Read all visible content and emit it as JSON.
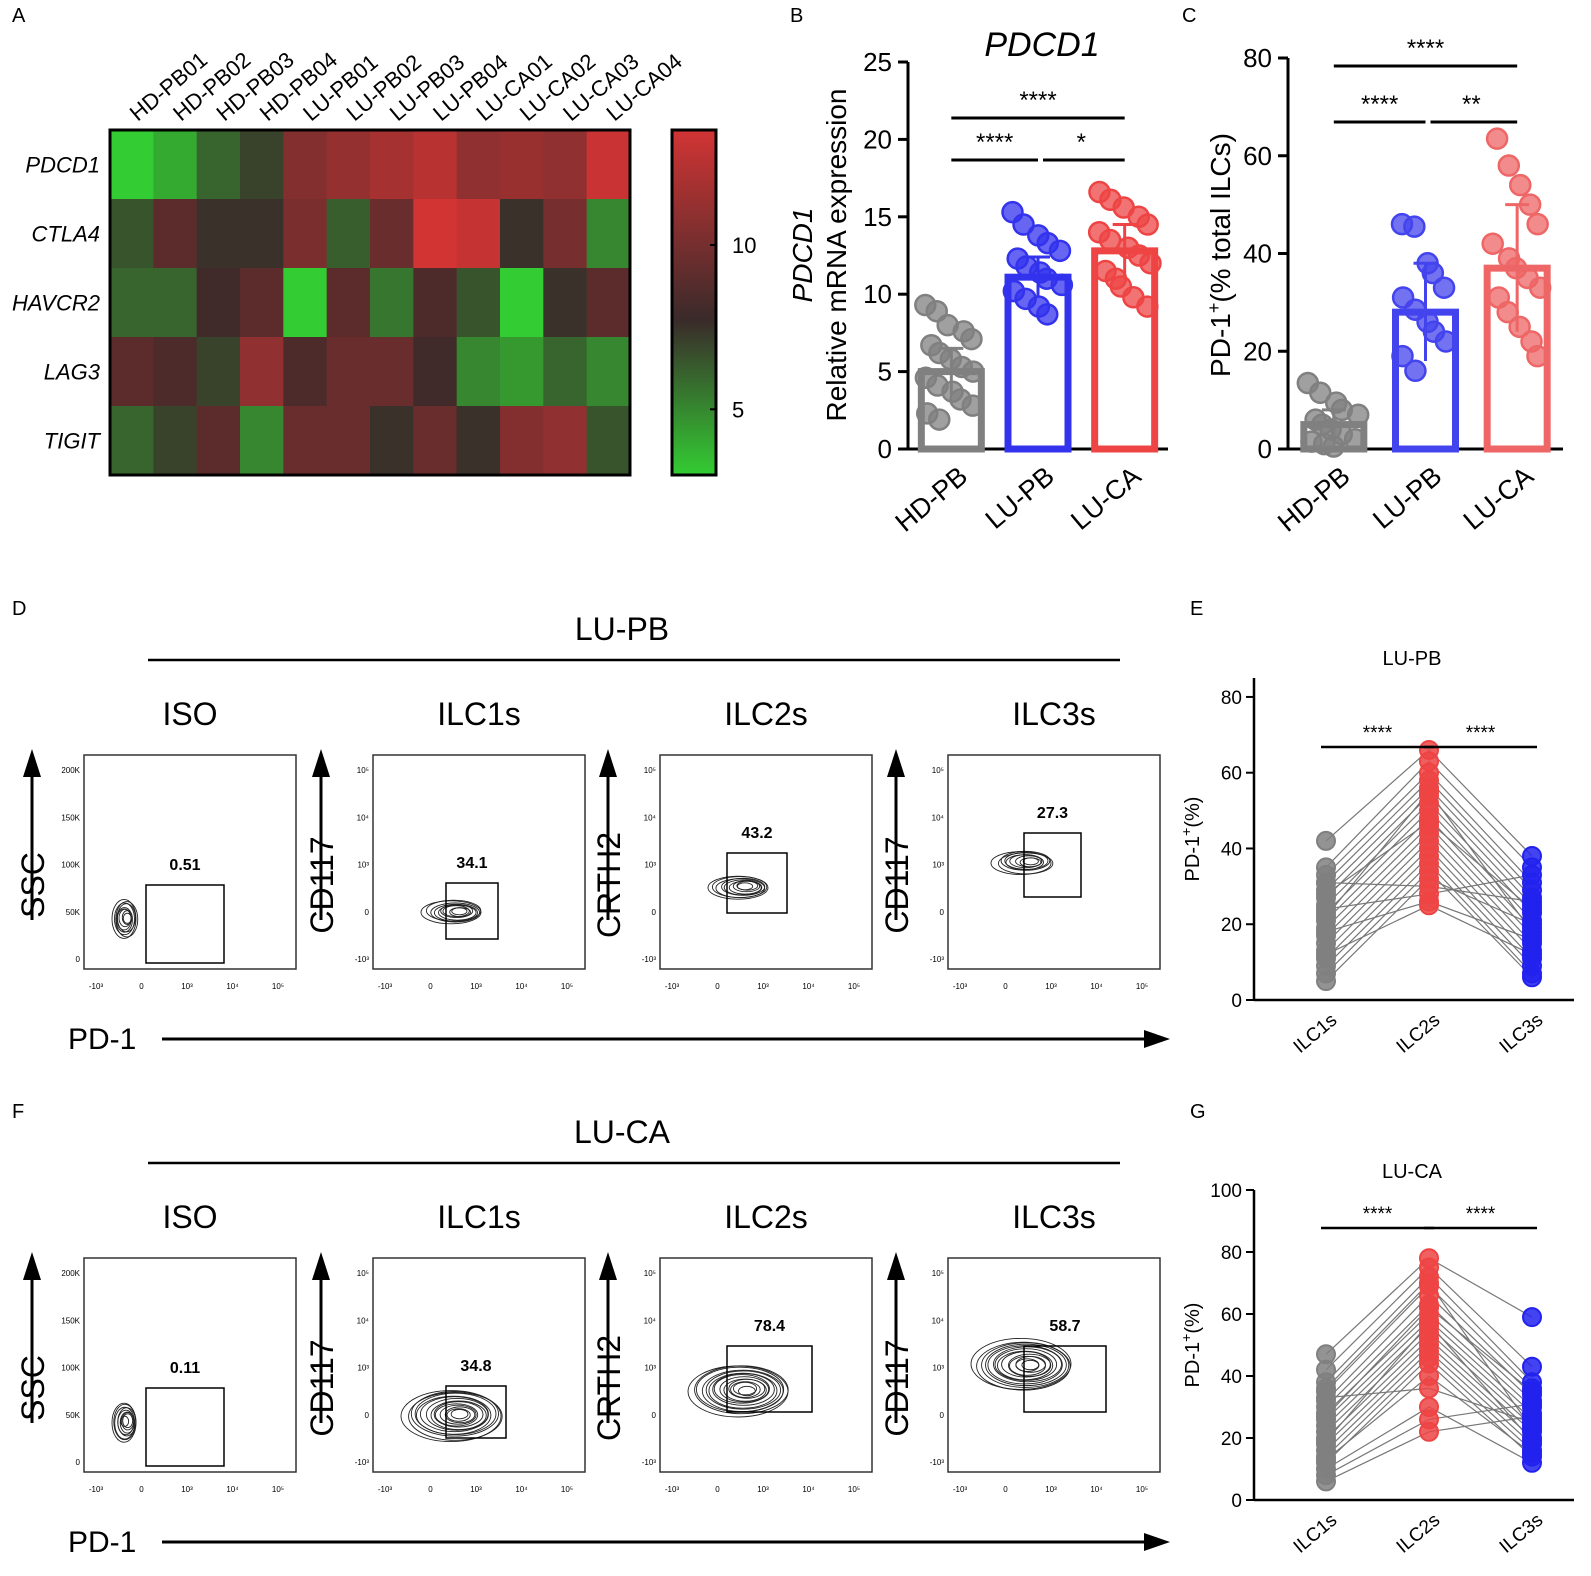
{
  "panel_letters": [
    "A",
    "B",
    "C",
    "D",
    "E",
    "F",
    "G"
  ],
  "chart_data": [
    {
      "panel": "A",
      "type": "heatmap",
      "columns": [
        "HD-PB01",
        "HD-PB02",
        "HD-PB03",
        "HD-PB04",
        "LU-PB01",
        "LU-PB02",
        "LU-PB03",
        "LU-PB04",
        "LU-CA01",
        "LU-CA02",
        "LU-CA03",
        "LU-CA04"
      ],
      "rows": [
        "PDCD1",
        "CTLA4",
        "HAVCR2",
        "LAG3",
        "TIGIT"
      ],
      "values": [
        [
          3.0,
          4.0,
          6.0,
          7.0,
          10.5,
          11.2,
          11.8,
          12.5,
          11.0,
          11.3,
          11.0,
          13.2
        ],
        [
          6.5,
          9.0,
          7.5,
          7.5,
          10.2,
          6.2,
          9.5,
          13.5,
          13.0,
          7.5,
          10.0,
          5.0
        ],
        [
          6.0,
          6.0,
          8.0,
          9.0,
          3.0,
          9.0,
          5.5,
          8.5,
          6.5,
          3.0,
          7.5,
          9.0
        ],
        [
          9.0,
          8.5,
          7.0,
          11.0,
          8.5,
          9.5,
          9.5,
          8.0,
          5.0,
          4.5,
          6.0,
          5.0
        ],
        [
          6.0,
          7.0,
          9.0,
          5.0,
          9.5,
          9.5,
          7.5,
          9.5,
          7.5,
          10.5,
          11.0,
          6.5
        ]
      ],
      "colorbar": {
        "min": 3,
        "max": 13.5,
        "ticks": [
          "10",
          "5"
        ],
        "low_color": "#33cc33",
        "mid_color": "#3a2a2a",
        "high_color": "#d23434"
      }
    },
    {
      "panel": "B",
      "type": "bar",
      "title": "PDCD1",
      "ylabel_gene": "PDCD1",
      "ylabel": "Relative mRNA expression",
      "categories": [
        "HD-PB",
        "LU-PB",
        "LU-CA"
      ],
      "values": [
        5.0,
        11.1,
        12.8
      ],
      "errors": [
        1.5,
        1.3,
        1.7
      ],
      "ylim": [
        0,
        25
      ],
      "yticks": [
        "0",
        "5",
        "10",
        "15",
        "20",
        "25"
      ],
      "colors": [
        "#808080",
        "#3333ee",
        "#ee4444"
      ],
      "fills": [
        "#ffffff",
        "#ffffff",
        "#ffffff"
      ],
      "points": [
        [
          9.3,
          8.9,
          8.0,
          7.6,
          7.1,
          6.7,
          6.2,
          5.8,
          5.3,
          5.0,
          4.6,
          4.1,
          3.7,
          3.2,
          2.8,
          2.3,
          1.9
        ],
        [
          15.3,
          14.5,
          13.8,
          13.3,
          12.8,
          12.3,
          11.8,
          11.4,
          11.0,
          10.6,
          10.2,
          9.7,
          9.2,
          8.7
        ],
        [
          16.6,
          16.1,
          15.6,
          15.0,
          14.5,
          14.0,
          13.5,
          13.0,
          12.5,
          12.0,
          11.5,
          11.0,
          10.5,
          9.8,
          9.2
        ]
      ],
      "significance": [
        {
          "from": 0,
          "to": 1,
          "label": "****",
          "level": 0
        },
        {
          "from": 1,
          "to": 2,
          "label": "*",
          "level": 0
        },
        {
          "from": 0,
          "to": 2,
          "label": "****",
          "level": 1
        }
      ]
    },
    {
      "panel": "C",
      "type": "bar",
      "ylabel": "PD-1",
      "ylabel_sup": "+",
      "ylabel_rest": "(% total ILCs)",
      "categories": [
        "HD-PB",
        "LU-PB",
        "LU-CA"
      ],
      "values": [
        5.0,
        28.0,
        37.0
      ],
      "errors": [
        3.0,
        10.0,
        13.0
      ],
      "ylim": [
        0,
        80
      ],
      "yticks": [
        "0",
        "20",
        "40",
        "60",
        "80"
      ],
      "colors": [
        "#808080",
        "#4444ee",
        "#ee6666"
      ],
      "fills": [
        "#ffffff",
        "#ffffff",
        "#ffffff"
      ],
      "points": [
        [
          13.5,
          11.5,
          9.5,
          8.0,
          7.0,
          6.0,
          5.0,
          4.0,
          3.0,
          2.0,
          1.5,
          1.0,
          0.5
        ],
        [
          46.0,
          45.5,
          38.0,
          36.0,
          33.0,
          31.0,
          28.5,
          26.0,
          24.0,
          22.0,
          19.0,
          16.0
        ],
        [
          63.5,
          58.0,
          54.0,
          50.0,
          46.0,
          42.0,
          39.0,
          37.0,
          35.0,
          33.0,
          31.0,
          28.0,
          25.0,
          22.0,
          19.0
        ]
      ],
      "significance": [
        {
          "from": 0,
          "to": 1,
          "label": "****",
          "level": 0
        },
        {
          "from": 1,
          "to": 2,
          "label": "**",
          "level": 0
        },
        {
          "from": 0,
          "to": 2,
          "label": "****",
          "level": 1
        }
      ]
    },
    {
      "panel": "D",
      "type": "scatter",
      "subtype": "flow-cytometry-contours",
      "header": "LU-PB",
      "x_axis_label": "PD-1",
      "plots": [
        {
          "title": "ISO",
          "ylabel": "SSC",
          "gate_value": "0.51",
          "linear_y": true
        },
        {
          "title": "ILC1s",
          "ylabel": "CD117",
          "gate_value": "34.1",
          "linear_y": false
        },
        {
          "title": "ILC2s",
          "ylabel": "CRTH2",
          "gate_value": "43.2",
          "linear_y": false
        },
        {
          "title": "ILC3s",
          "ylabel": "CD117",
          "gate_value": "27.3",
          "linear_y": false
        }
      ]
    },
    {
      "panel": "E",
      "type": "scatter",
      "subtype": "paired",
      "title": "LU-PB",
      "ylabel": "PD-1",
      "ylabel_sup": "+",
      "ylabel_rest": "(%)",
      "categories": [
        "ILC1s",
        "ILC2s",
        "ILC3s"
      ],
      "ylim": [
        0,
        85
      ],
      "yticks": [
        "0",
        "20",
        "40",
        "60",
        "80"
      ],
      "colors": [
        "#808080",
        "#ee4444",
        "#2222ee"
      ],
      "series": [
        [
          42,
          35,
          33,
          31,
          29,
          27,
          25,
          23,
          21,
          19,
          17,
          15,
          13,
          11,
          9,
          7,
          5,
          31,
          24,
          18,
          12,
          28,
          22
        ],
        [
          66,
          63,
          60,
          58,
          56,
          54,
          52,
          50,
          48,
          46,
          44,
          42,
          40,
          38,
          36,
          34,
          32,
          30,
          28,
          26,
          25,
          47,
          55
        ],
        [
          38,
          35,
          31,
          29,
          27,
          25,
          23,
          21,
          19,
          17,
          15,
          13,
          11,
          9,
          7,
          6,
          20,
          26,
          33,
          16,
          12,
          24,
          18
        ]
      ],
      "significance": [
        {
          "from": 0,
          "to": 1,
          "label": "****"
        },
        {
          "from": 1,
          "to": 2,
          "label": "****"
        }
      ]
    },
    {
      "panel": "F",
      "type": "scatter",
      "subtype": "flow-cytometry-contours",
      "header": "LU-CA",
      "x_axis_label": "PD-1",
      "plots": [
        {
          "title": "ISO",
          "ylabel": "SSC",
          "gate_value": "0.11",
          "linear_y": true
        },
        {
          "title": "ILC1s",
          "ylabel": "CD117",
          "gate_value": "34.8",
          "linear_y": false
        },
        {
          "title": "ILC2s",
          "ylabel": "CRTH2",
          "gate_value": "78.4",
          "linear_y": false
        },
        {
          "title": "ILC3s",
          "ylabel": "CD117",
          "gate_value": "58.7",
          "linear_y": false
        }
      ]
    },
    {
      "panel": "G",
      "type": "scatter",
      "subtype": "paired",
      "title": "LU-CA",
      "ylabel": "PD-1",
      "ylabel_sup": "+",
      "ylabel_rest": "(%)",
      "categories": [
        "ILC1s",
        "ILC2s",
        "ILC3s"
      ],
      "ylim": [
        0,
        100
      ],
      "yticks": [
        "0",
        "20",
        "40",
        "60",
        "80",
        "100"
      ],
      "colors": [
        "#808080",
        "#ee4444",
        "#2222ee"
      ],
      "series": [
        [
          47,
          42,
          38,
          35,
          32,
          30,
          28,
          26,
          24,
          22,
          20,
          18,
          16,
          14,
          12,
          10,
          8,
          6,
          36,
          27,
          19,
          13,
          33
        ],
        [
          78,
          75,
          72,
          69,
          66,
          63,
          60,
          58,
          56,
          54,
          52,
          50,
          48,
          46,
          44,
          30,
          26,
          22,
          70,
          62,
          57,
          40,
          36
        ],
        [
          59,
          43,
          38,
          36,
          34,
          32,
          30,
          28,
          26,
          24,
          22,
          20,
          18,
          16,
          14,
          12,
          31,
          27,
          23,
          35,
          19,
          15,
          25
        ]
      ],
      "significance": [
        {
          "from": 0,
          "to": 1,
          "label": "****"
        },
        {
          "from": 1,
          "to": 2,
          "label": "****"
        }
      ]
    }
  ],
  "flow_tick_labels": {
    "linear_y": [
      "200K",
      "150K",
      "100K",
      "50K",
      "0"
    ],
    "log_y": [
      "10⁵",
      "10⁴",
      "10³",
      "0",
      "-10³"
    ],
    "log_x": [
      "-10³",
      "0",
      "10³",
      "10⁴",
      "10⁵"
    ]
  }
}
